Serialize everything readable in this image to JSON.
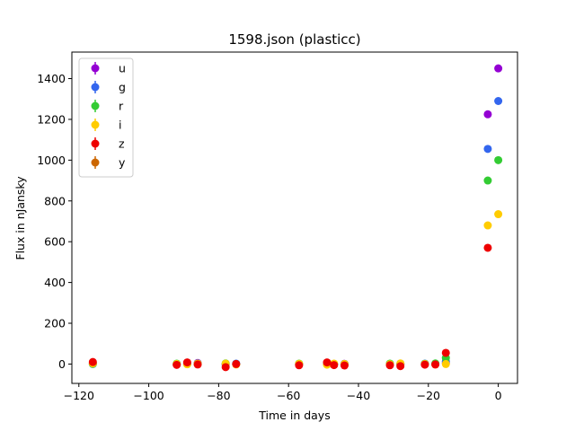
{
  "chart_data": {
    "type": "scatter",
    "title": "1598.json (plasticc)",
    "xlabel": "Time in days",
    "ylabel": "Flux in nJansky",
    "xlim": [
      -122,
      5.5
    ],
    "ylim": [
      -95,
      1530
    ],
    "xticks": [
      -120,
      -100,
      -80,
      -60,
      -40,
      -20,
      0
    ],
    "xtick_labels": [
      "−120",
      "−100",
      "−80",
      "−60",
      "−40",
      "−20",
      "0"
    ],
    "yticks": [
      0,
      200,
      400,
      600,
      800,
      1000,
      1200,
      1400
    ],
    "ytick_labels": [
      "0",
      "200",
      "400",
      "600",
      "800",
      "1000",
      "1200",
      "1400"
    ],
    "grid": false,
    "legend_position": "top-left",
    "series": [
      {
        "name": "u",
        "color": "#9400d3",
        "points": [
          [
            -116,
            2
          ],
          [
            -92,
            0
          ],
          [
            -89,
            1
          ],
          [
            -86,
            5
          ],
          [
            -78,
            -2
          ],
          [
            -75,
            1
          ],
          [
            -57,
            0
          ],
          [
            -49,
            2
          ],
          [
            -47,
            0
          ],
          [
            -44,
            1
          ],
          [
            -31,
            0
          ],
          [
            -28,
            2
          ],
          [
            -21,
            0
          ],
          [
            -18,
            1
          ],
          [
            -15,
            5
          ],
          [
            -3,
            1225
          ],
          [
            0,
            1450
          ]
        ]
      },
      {
        "name": "g",
        "color": "#3366ee",
        "points": [
          [
            -116,
            0
          ],
          [
            -92,
            -2
          ],
          [
            -89,
            1
          ],
          [
            -86,
            3
          ],
          [
            -78,
            0
          ],
          [
            -75,
            2
          ],
          [
            -57,
            -1
          ],
          [
            -49,
            1
          ],
          [
            -47,
            -2
          ],
          [
            -44,
            0
          ],
          [
            -31,
            1
          ],
          [
            -28,
            -1
          ],
          [
            -21,
            2
          ],
          [
            -18,
            0
          ],
          [
            -15,
            12
          ],
          [
            -3,
            1055
          ],
          [
            0,
            1290
          ]
        ]
      },
      {
        "name": "r",
        "color": "#33cc33",
        "points": [
          [
            -116,
            1
          ],
          [
            -92,
            2
          ],
          [
            -89,
            0
          ],
          [
            -86,
            1
          ],
          [
            -78,
            3
          ],
          [
            -75,
            0
          ],
          [
            -57,
            2
          ],
          [
            -49,
            0
          ],
          [
            -47,
            1
          ],
          [
            -44,
            -1
          ],
          [
            -31,
            2
          ],
          [
            -28,
            0
          ],
          [
            -21,
            1
          ],
          [
            -18,
            3
          ],
          [
            -15,
            30
          ],
          [
            -3,
            900
          ],
          [
            0,
            1000
          ]
        ]
      },
      {
        "name": "i",
        "color": "#ffcc00",
        "points": [
          [
            -116,
            3
          ],
          [
            -92,
            0
          ],
          [
            -89,
            -1
          ],
          [
            -86,
            2
          ],
          [
            -78,
            2
          ],
          [
            -75,
            -2
          ],
          [
            -57,
            1
          ],
          [
            -49,
            -3
          ],
          [
            -47,
            2
          ],
          [
            -44,
            0
          ],
          [
            -31,
            -1
          ],
          [
            -28,
            3
          ],
          [
            -21,
            0
          ],
          [
            -18,
            -2
          ],
          [
            -15,
            0
          ],
          [
            -3,
            680
          ],
          [
            0,
            735
          ]
        ]
      },
      {
        "name": "z",
        "color": "#ee0000",
        "points": [
          [
            -116,
            10
          ],
          [
            -92,
            -4
          ],
          [
            -89,
            8
          ],
          [
            -86,
            -2
          ],
          [
            -78,
            -15
          ],
          [
            -75,
            0
          ],
          [
            -57,
            -6
          ],
          [
            -49,
            8
          ],
          [
            -47,
            -5
          ],
          [
            -44,
            -7
          ],
          [
            -31,
            -6
          ],
          [
            -28,
            -10
          ],
          [
            -21,
            -3
          ],
          [
            -18,
            -2
          ],
          [
            -15,
            55
          ],
          [
            -3,
            570
          ]
        ]
      },
      {
        "name": "y",
        "color": "#cc6600",
        "points": []
      }
    ]
  }
}
